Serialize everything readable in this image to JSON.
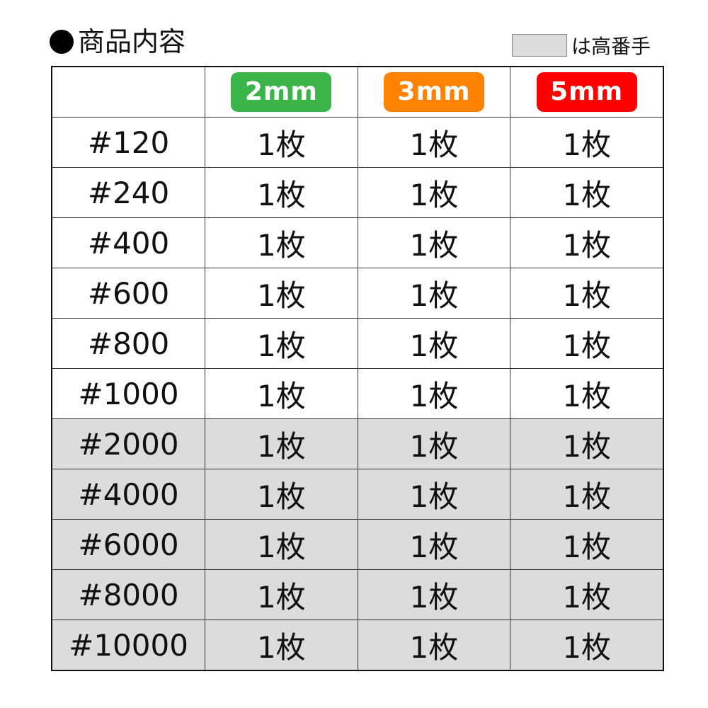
{
  "title": "商品内容",
  "legend": {
    "label": "は高番手",
    "swatch_color": "#dcdcdc"
  },
  "columns": [
    {
      "label": "2mm",
      "color": "#3bb54a"
    },
    {
      "label": "3mm",
      "color": "#ff8200"
    },
    {
      "label": "5mm",
      "color": "#ff0000"
    }
  ],
  "rows": [
    {
      "grit": "#120",
      "values": [
        "1枚",
        "1枚",
        "1枚"
      ],
      "premium": false
    },
    {
      "grit": "#240",
      "values": [
        "1枚",
        "1枚",
        "1枚"
      ],
      "premium": false
    },
    {
      "grit": "#400",
      "values": [
        "1枚",
        "1枚",
        "1枚"
      ],
      "premium": false
    },
    {
      "grit": "#600",
      "values": [
        "1枚",
        "1枚",
        "1枚"
      ],
      "premium": false
    },
    {
      "grit": "#800",
      "values": [
        "1枚",
        "1枚",
        "1枚"
      ],
      "premium": false
    },
    {
      "grit": "#1000",
      "values": [
        "1枚",
        "1枚",
        "1枚"
      ],
      "premium": false
    },
    {
      "grit": "#2000",
      "values": [
        "1枚",
        "1枚",
        "1枚"
      ],
      "premium": true
    },
    {
      "grit": "#4000",
      "values": [
        "1枚",
        "1枚",
        "1枚"
      ],
      "premium": true
    },
    {
      "grit": "#6000",
      "values": [
        "1枚",
        "1枚",
        "1枚"
      ],
      "premium": true
    },
    {
      "grit": "#8000",
      "values": [
        "1枚",
        "1枚",
        "1枚"
      ],
      "premium": true
    },
    {
      "grit": "#10000",
      "values": [
        "1枚",
        "1枚",
        "1枚"
      ],
      "premium": true
    }
  ]
}
